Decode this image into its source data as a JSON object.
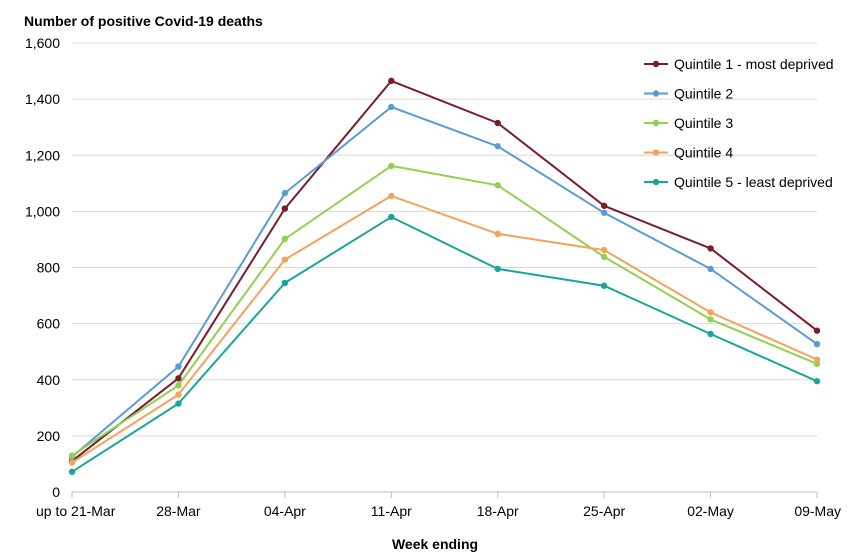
{
  "chart_data": {
    "type": "line",
    "title": "Number of positive Covid-19 deaths",
    "xlabel": "Week ending",
    "ylabel": "",
    "categories": [
      "up to 21-Mar",
      "28-Mar",
      "04-Apr",
      "11-Apr",
      "18-Apr",
      "25-Apr",
      "02-May",
      "09-May"
    ],
    "ylim": [
      0,
      1600
    ],
    "yticks": [
      0,
      200,
      400,
      600,
      800,
      1000,
      1200,
      1400,
      1600
    ],
    "ytick_labels": [
      "0",
      "200",
      "400",
      "600",
      "800",
      "1,000",
      "1,200",
      "1,400",
      "1,600"
    ],
    "grid": true,
    "legend_position": "top-right",
    "series": [
      {
        "name": "Quintile 1 - most deprived",
        "color": "#7b1c2b",
        "values": [
          110,
          405,
          1010,
          1465,
          1315,
          1020,
          868,
          575
        ]
      },
      {
        "name": "Quintile 2",
        "color": "#5b9bd5",
        "values": [
          125,
          447,
          1065,
          1372,
          1232,
          995,
          795,
          527
        ]
      },
      {
        "name": "Quintile 3",
        "color": "#92d050",
        "values": [
          130,
          380,
          902,
          1162,
          1093,
          838,
          615,
          457
        ]
      },
      {
        "name": "Quintile 4",
        "color": "#f4a25c",
        "values": [
          105,
          347,
          828,
          1055,
          920,
          862,
          640,
          472
        ]
      },
      {
        "name": "Quintile 5 - least deprived",
        "color": "#1aa59a",
        "values": [
          72,
          315,
          745,
          980,
          795,
          735,
          563,
          395
        ]
      }
    ]
  }
}
